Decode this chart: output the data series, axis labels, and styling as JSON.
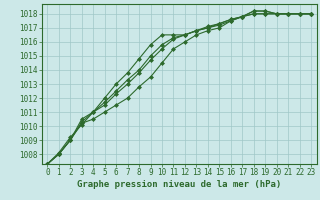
{
  "title": "Graphe pression niveau de la mer (hPa)",
  "xlabel": "Graphe pression niveau de la mer (hPa)",
  "xlim": [
    -0.5,
    23.5
  ],
  "ylim": [
    1007.3,
    1018.7
  ],
  "yticks": [
    1008,
    1009,
    1010,
    1011,
    1012,
    1013,
    1014,
    1015,
    1016,
    1017,
    1018
  ],
  "xticks": [
    0,
    1,
    2,
    3,
    4,
    5,
    6,
    7,
    8,
    9,
    10,
    11,
    12,
    13,
    14,
    15,
    16,
    17,
    18,
    19,
    20,
    21,
    22,
    23
  ],
  "bg_color": "#cce8e8",
  "grid_color": "#a0c8c8",
  "line_color": "#2d6a2d",
  "series": [
    [
      1007.3,
      1008.0,
      1009.0,
      1010.3,
      1011.0,
      1011.7,
      1012.5,
      1013.3,
      1014.0,
      1015.0,
      1015.8,
      1016.3,
      1016.5,
      1016.8,
      1017.0,
      1017.2,
      1017.5,
      1017.8,
      1018.2,
      1018.2,
      1018.0,
      1018.0,
      1018.0,
      1018.0
    ],
    [
      1007.3,
      1008.0,
      1009.0,
      1010.2,
      1010.5,
      1011.0,
      1011.5,
      1012.0,
      1012.8,
      1013.5,
      1014.5,
      1015.5,
      1016.0,
      1016.5,
      1016.8,
      1017.0,
      1017.5,
      1017.8,
      1018.0,
      1018.0,
      1018.0,
      1018.0,
      1018.0,
      1018.0
    ],
    [
      1007.3,
      1008.1,
      1009.2,
      1010.1,
      1011.0,
      1011.5,
      1012.3,
      1013.0,
      1013.8,
      1014.7,
      1015.5,
      1016.2,
      1016.5,
      1016.8,
      1017.0,
      1017.3,
      1017.6,
      1017.8,
      1018.0,
      1018.0,
      1018.0,
      1018.0,
      1018.0,
      1018.0
    ],
    [
      1007.3,
      1008.0,
      1009.0,
      1010.5,
      1011.0,
      1012.0,
      1013.0,
      1013.8,
      1014.8,
      1015.8,
      1016.5,
      1016.5,
      1016.5,
      1016.8,
      1017.1,
      1017.3,
      1017.6,
      1017.8,
      1018.2,
      1018.2,
      1018.0,
      1018.0,
      1018.0,
      1018.0
    ]
  ],
  "marker": "D",
  "markersize": 2.0,
  "linewidth": 0.8,
  "fontsize_xlabel": 6.5,
  "fontsize_tick": 5.5
}
